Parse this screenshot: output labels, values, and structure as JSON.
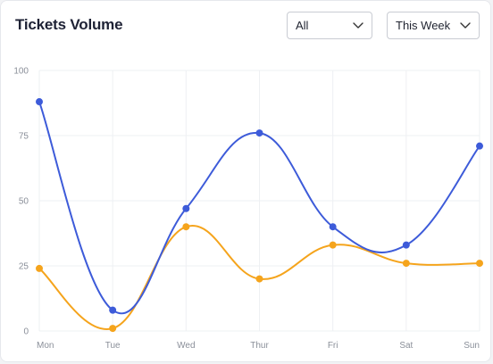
{
  "header": {
    "title": "Tickets Volume",
    "filter_select": {
      "selected": "All"
    },
    "range_select": {
      "selected": "This Week"
    }
  },
  "colors": {
    "series_1": "#3d5bd9",
    "series_2": "#f5a41c",
    "grid": "#eef0f3"
  },
  "chart_data": {
    "type": "line",
    "title": "Tickets Volume",
    "categories": [
      "Mon",
      "Tue",
      "Wed",
      "Thur",
      "Fri",
      "Sat",
      "Sun"
    ],
    "y_ticks": [
      "0",
      "25",
      "50",
      "75",
      "100"
    ],
    "ylim": [
      0,
      100
    ],
    "grid": true,
    "smooth": true,
    "series": [
      {
        "values": [
          88,
          8,
          47,
          76,
          40,
          33,
          71
        ]
      },
      {
        "values": [
          24,
          1,
          40,
          20,
          33,
          26,
          26
        ]
      }
    ]
  }
}
